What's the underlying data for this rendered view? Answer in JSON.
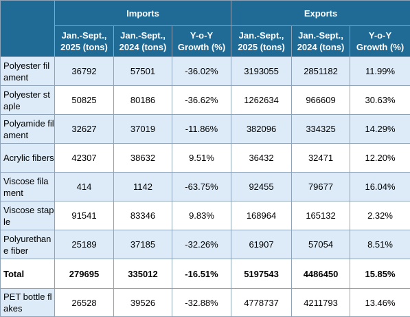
{
  "header": {
    "imports_label": "Imports",
    "exports_label": "Exports",
    "columns": [
      {
        "line1": "Jan.-Sept.,",
        "line2": "2025 (tons)"
      },
      {
        "line1": "Jan.-Sept.,",
        "line2": "2024 (tons)"
      },
      {
        "line1": "Y-o-Y",
        "line2": "Growth (%)"
      },
      {
        "line1": "Jan.-Sept.,",
        "line2": "2025 (tons)"
      },
      {
        "line1": "Jan.-Sept.,",
        "line2": "2024 (tons)"
      },
      {
        "line1": "Y-o-Y",
        "line2": "Growth (%)"
      }
    ]
  },
  "rows": [
    {
      "label": "Polyester filament",
      "values": [
        "36792",
        "57501",
        "-36.02%",
        "3193055",
        "2851182",
        "11.99%"
      ]
    },
    {
      "label": "Polyester staple",
      "values": [
        "50825",
        "80186",
        "-36.62%",
        "1262634",
        "966609",
        "30.63%"
      ]
    },
    {
      "label": "Polyamide filament",
      "values": [
        "32627",
        "37019",
        "-11.86%",
        "382096",
        "334325",
        "14.29%"
      ]
    },
    {
      "label": "Acrylic fibers",
      "values": [
        "42307",
        "38632",
        "9.51%",
        "36432",
        "32471",
        "12.20%"
      ]
    },
    {
      "label": "Viscose filament",
      "values": [
        "414",
        "1142",
        "-63.75%",
        "92455",
        "79677",
        "16.04%"
      ]
    },
    {
      "label": "Viscose staple",
      "values": [
        "91541",
        "83346",
        "9.83%",
        "168964",
        "165132",
        "2.32%"
      ]
    },
    {
      "label": "Polyurethane fiber",
      "values": [
        "25189",
        "37185",
        "-32.26%",
        "61907",
        "57054",
        "8.51%"
      ]
    },
    {
      "label": "Total",
      "values": [
        "279695",
        "335012",
        "-16.51%",
        "5197543",
        "4486450",
        "15.85%"
      ]
    },
    {
      "label": "PET bottle flakes",
      "values": [
        "26528",
        "39526",
        "-32.88%",
        "4778737",
        "4211793",
        "13.46%"
      ]
    }
  ],
  "colors": {
    "header_bg": "#1f6b96",
    "header_text": "#ffffff",
    "row_blue": "#dcebf7",
    "row_white": "#ffffff"
  }
}
